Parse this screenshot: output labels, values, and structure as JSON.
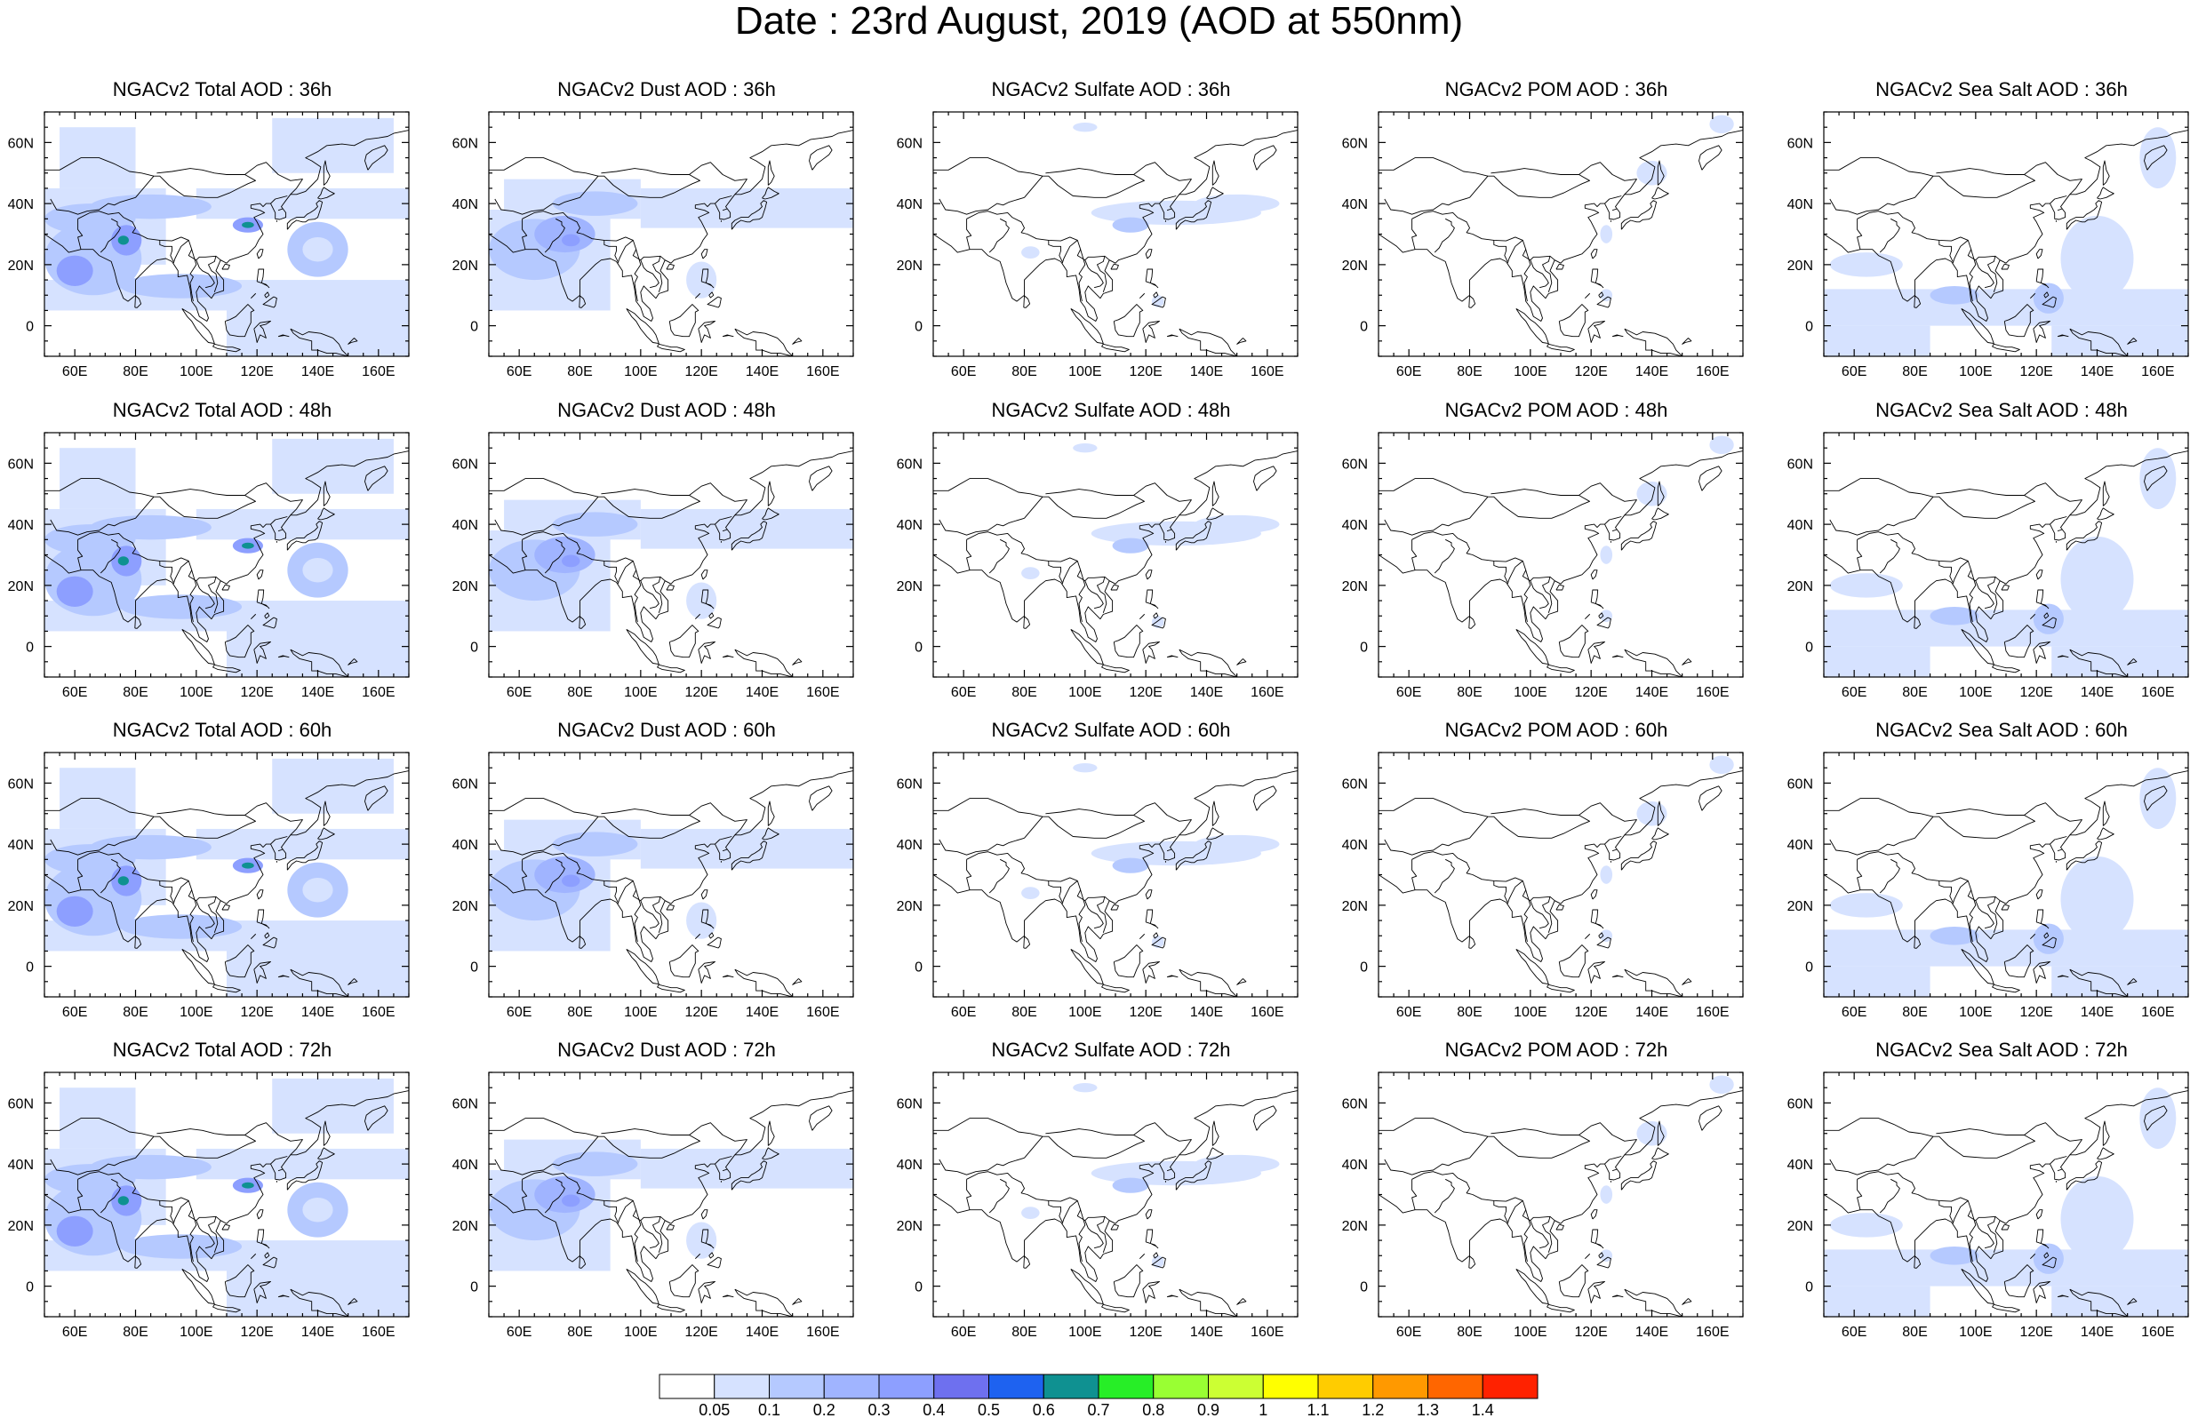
{
  "title": "Date : 23rd August, 2019 (AOD at 550nm)",
  "map_extent": {
    "lon": [
      50,
      170
    ],
    "lat": [
      -10,
      70
    ]
  },
  "lon_ticks": [
    {
      "value": 60,
      "label": "60E"
    },
    {
      "value": 80,
      "label": "80E"
    },
    {
      "value": 100,
      "label": "100E"
    },
    {
      "value": 120,
      "label": "120E"
    },
    {
      "value": 140,
      "label": "140E"
    },
    {
      "value": 160,
      "label": "160E"
    }
  ],
  "lat_ticks": [
    {
      "value": 60,
      "label": "60N"
    },
    {
      "value": 40,
      "label": "40N"
    },
    {
      "value": 20,
      "label": "20N"
    },
    {
      "value": 0,
      "label": "0"
    }
  ],
  "rows": [
    {
      "hour": "36h",
      "panels": [
        {
          "title": "NGACv2 Total AOD : 36h",
          "species": "total"
        },
        {
          "title": "NGACv2 Dust AOD : 36h",
          "species": "dust"
        },
        {
          "title": "NGACv2 Sulfate AOD : 36h",
          "species": "sulfate"
        },
        {
          "title": "NGACv2 POM AOD : 36h",
          "species": "pom"
        },
        {
          "title": "NGACv2 Sea Salt AOD : 36h",
          "species": "seasalt"
        }
      ]
    },
    {
      "hour": "48h",
      "panels": [
        {
          "title": "NGACv2 Total AOD : 48h",
          "species": "total"
        },
        {
          "title": "NGACv2 Dust AOD : 48h",
          "species": "dust"
        },
        {
          "title": "NGACv2 Sulfate AOD : 48h",
          "species": "sulfate"
        },
        {
          "title": "NGACv2 POM AOD : 48h",
          "species": "pom"
        },
        {
          "title": "NGACv2 Sea Salt AOD : 48h",
          "species": "seasalt"
        }
      ]
    },
    {
      "hour": "60h",
      "panels": [
        {
          "title": "NGACv2 Total AOD : 60h",
          "species": "total"
        },
        {
          "title": "NGACv2 Dust AOD : 60h",
          "species": "dust"
        },
        {
          "title": "NGACv2 Sulfate AOD : 60h",
          "species": "sulfate"
        },
        {
          "title": "NGACv2 POM AOD : 60h",
          "species": "pom"
        },
        {
          "title": "NGACv2 Sea Salt AOD : 60h",
          "species": "seasalt"
        }
      ]
    },
    {
      "hour": "72h",
      "panels": [
        {
          "title": "NGACv2 Total AOD : 72h",
          "species": "total"
        },
        {
          "title": "NGACv2 Dust AOD : 72h",
          "species": "dust"
        },
        {
          "title": "NGACv2 Sulfate AOD : 72h",
          "species": "sulfate"
        },
        {
          "title": "NGACv2 POM AOD : 72h",
          "species": "pom"
        },
        {
          "title": "NGACv2 Sea Salt  AOD : 72h",
          "species": "seasalt"
        }
      ]
    }
  ],
  "colorbar": {
    "colors": [
      "#ffffff",
      "#d6e2ff",
      "#b5c9ff",
      "#a0b4ff",
      "#8d9fff",
      "#6e70ef",
      "#1e62f0",
      "#0f9191",
      "#27ee27",
      "#99ff33",
      "#ccff33",
      "#ffff00",
      "#ffcc00",
      "#ff9900",
      "#ff6600",
      "#ff2200"
    ],
    "labels": [
      "0.05",
      "0.1",
      "0.2",
      "0.3",
      "0.4",
      "0.5",
      "0.6",
      "0.7",
      "0.8",
      "0.9",
      "1",
      "1.1",
      "1.2",
      "1.3",
      "1.4"
    ]
  }
}
